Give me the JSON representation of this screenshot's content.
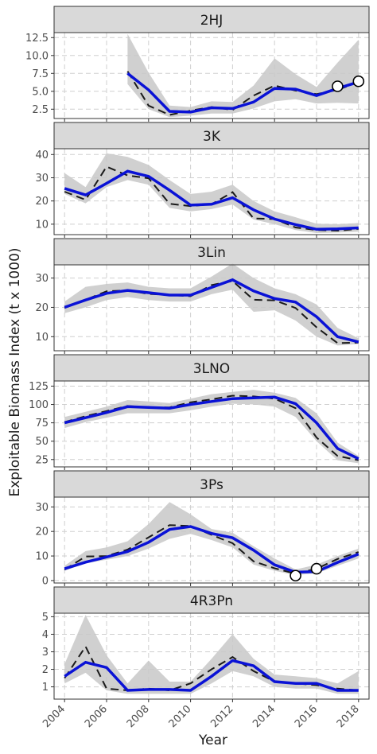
{
  "chart_data": {
    "type": "line",
    "ylabel": "Exploitable Biomass Index (t x 1000)",
    "xlabel": "Year",
    "xlim": [
      2003.5,
      2018.5
    ],
    "x_ticks": [
      2004,
      2006,
      2008,
      2010,
      2012,
      2014,
      2016,
      2018
    ],
    "x_tick_labels": [
      "2004",
      "2006",
      "2008",
      "2010",
      "2012",
      "2014",
      "2016",
      "2018"
    ],
    "grid": true,
    "colors": {
      "fit": "#0a12d6",
      "observed": "#1a1a1a",
      "band": "#c8c8c8",
      "strip": "#d9d9d9"
    },
    "panels": [
      {
        "title": "2HJ",
        "ylim": [
          1.2,
          13.2
        ],
        "y_ticks": [
          2.5,
          5.0,
          7.5,
          10.0,
          12.5
        ],
        "y_tick_labels": [
          "2.5",
          "5.0",
          "7.5",
          "10.0",
          "12.5"
        ],
        "x": [
          2007,
          2008,
          2009,
          2010,
          2011,
          2012,
          2013,
          2014,
          2015,
          2016,
          2017,
          2018
        ],
        "fit": [
          7.5,
          5.2,
          2.2,
          2.1,
          2.7,
          2.6,
          3.5,
          5.4,
          5.3,
          4.4,
          5.4,
          6.3
        ],
        "observed": [
          7.8,
          3.0,
          1.7,
          2.3,
          2.8,
          2.4,
          4.4,
          5.8,
          5.1,
          4.6,
          5.2,
          6.3
        ],
        "lower": [
          6.0,
          2.5,
          1.4,
          1.6,
          1.9,
          1.9,
          2.6,
          3.6,
          3.9,
          3.3,
          3.4,
          3.3
        ],
        "upper": [
          13.0,
          7.6,
          3.0,
          2.8,
          3.6,
          3.5,
          5.8,
          9.6,
          7.4,
          5.6,
          9.0,
          12.2
        ],
        "points_x": [
          2017,
          2018
        ],
        "points_y": [
          5.7,
          6.4
        ]
      },
      {
        "title": "3K",
        "ylim": [
          5.5,
          42.5
        ],
        "y_ticks": [
          10,
          20,
          30,
          40
        ],
        "y_tick_labels": [
          "10",
          "20",
          "30",
          "40"
        ],
        "x": [
          2004,
          2005,
          2006,
          2007,
          2008,
          2009,
          2010,
          2011,
          2012,
          2013,
          2014,
          2015,
          2016,
          2017,
          2018
        ],
        "fit": [
          25.4,
          22.6,
          27.6,
          32.8,
          30.6,
          24.6,
          18.2,
          18.6,
          21.4,
          16.2,
          12.2,
          9.8,
          7.8,
          8.0,
          8.4
        ],
        "observed": [
          24.0,
          20.5,
          34.8,
          31.0,
          29.8,
          18.8,
          17.8,
          18.6,
          23.8,
          12.5,
          12.2,
          8.6,
          7.5,
          7.2,
          8.0
        ],
        "lower": [
          23.0,
          19.0,
          26.0,
          29.0,
          27.0,
          17.0,
          15.5,
          16.5,
          18.5,
          12.0,
          10.0,
          7.5,
          6.2,
          6.4,
          6.8
        ],
        "upper": [
          32.0,
          26.0,
          40.5,
          39.0,
          35.5,
          29.0,
          23.0,
          24.0,
          27.0,
          20.0,
          15.5,
          13.0,
          10.2,
          10.0,
          10.5
        ]
      },
      {
        "title": "3Lin",
        "ylim": [
          5.2,
          34.5
        ],
        "y_ticks": [
          10,
          20,
          30
        ],
        "y_tick_labels": [
          "10",
          "20",
          "30"
        ],
        "x": [
          2004,
          2005,
          2006,
          2007,
          2008,
          2009,
          2010,
          2011,
          2012,
          2013,
          2014,
          2015,
          2016,
          2017,
          2018
        ],
        "fit": [
          20.0,
          22.5,
          24.8,
          25.8,
          25.0,
          24.2,
          24.2,
          26.8,
          29.4,
          25.6,
          23.0,
          21.8,
          16.8,
          10.0,
          8.2
        ],
        "observed": [
          19.8,
          22.6,
          25.5,
          25.8,
          24.6,
          24.2,
          23.8,
          27.6,
          29.0,
          22.6,
          22.4,
          19.8,
          13.2,
          7.8,
          8.0
        ],
        "lower": [
          18.0,
          20.0,
          22.5,
          23.5,
          22.5,
          22.0,
          22.0,
          24.5,
          26.0,
          18.5,
          19.0,
          15.5,
          10.0,
          7.0,
          7.5
        ],
        "upper": [
          22.0,
          27.0,
          28.0,
          28.5,
          27.0,
          26.5,
          26.5,
          30.5,
          35.0,
          30.0,
          26.5,
          24.5,
          21.0,
          13.0,
          9.5
        ]
      },
      {
        "title": "3LNO",
        "ylim": [
          15,
          132
        ],
        "y_ticks": [
          25,
          50,
          75,
          100,
          125
        ],
        "y_tick_labels": [
          "25",
          "50",
          "75",
          "100",
          "125"
        ],
        "x": [
          2004,
          2005,
          2006,
          2007,
          2008,
          2009,
          2010,
          2011,
          2012,
          2013,
          2014,
          2015,
          2016,
          2017,
          2018
        ],
        "fit": [
          75,
          82,
          89,
          97,
          96,
          95,
          100,
          104,
          108,
          109,
          110,
          101,
          75,
          40,
          26
        ],
        "observed": [
          76,
          84,
          91,
          98,
          96,
          96,
          103,
          107,
          112,
          111,
          108,
          95,
          55,
          30,
          24
        ],
        "lower": [
          68,
          76,
          82,
          88,
          88,
          88,
          92,
          97,
          101,
          100,
          97,
          83,
          50,
          24,
          20
        ],
        "upper": [
          83,
          90,
          97,
          106,
          104,
          102,
          108,
          114,
          117,
          120,
          116,
          109,
          88,
          48,
          30
        ]
      },
      {
        "title": "3Ps",
        "ylim": [
          -1,
          34
        ],
        "y_ticks": [
          0,
          10,
          20,
          30
        ],
        "y_tick_labels": [
          "0",
          "10",
          "20",
          "30"
        ],
        "x": [
          2004,
          2005,
          2006,
          2007,
          2008,
          2009,
          2010,
          2011,
          2012,
          2013,
          2014,
          2015,
          2016,
          2017,
          2018
        ],
        "fit": [
          4.8,
          7.5,
          9.6,
          11.8,
          15.6,
          20.8,
          22.0,
          19.2,
          17.4,
          12.4,
          6.4,
          3.4,
          3.6,
          7.4,
          10.8
        ],
        "observed": [
          4.4,
          9.8,
          10.0,
          12.6,
          17.6,
          22.6,
          22.2,
          18.6,
          15.2,
          7.8,
          5.0,
          2.8,
          4.8,
          8.8,
          11.6
        ],
        "lower": [
          4.0,
          7.0,
          8.5,
          10.0,
          13.0,
          17.0,
          19.0,
          16.5,
          13.5,
          6.5,
          4.0,
          2.2,
          3.0,
          6.0,
          9.0
        ],
        "upper": [
          6.0,
          12.0,
          13.5,
          16.0,
          23.0,
          32.0,
          27.0,
          21.0,
          19.5,
          14.0,
          9.0,
          4.5,
          6.5,
          10.0,
          13.0
        ],
        "points_x": [
          2015,
          2016
        ],
        "points_y": [
          2.0,
          4.8
        ]
      },
      {
        "title": "4R3Pn",
        "ylim": [
          0.3,
          5.2
        ],
        "y_ticks": [
          1,
          2,
          3,
          4,
          5
        ],
        "y_tick_labels": [
          "1",
          "2",
          "3",
          "4",
          "5"
        ],
        "x": [
          2004,
          2005,
          2006,
          2007,
          2008,
          2009,
          2010,
          2011,
          2012,
          2013,
          2014,
          2015,
          2016,
          2017,
          2018
        ],
        "fit": [
          1.6,
          2.4,
          2.1,
          0.8,
          0.85,
          0.85,
          0.8,
          1.6,
          2.5,
          2.2,
          1.3,
          1.2,
          1.2,
          0.8,
          0.8
        ],
        "observed": [
          1.5,
          3.3,
          0.9,
          0.8,
          0.9,
          0.8,
          1.2,
          2.0,
          2.7,
          1.9,
          1.3,
          1.2,
          1.1,
          0.9,
          0.8
        ],
        "lower": [
          1.2,
          1.8,
          0.8,
          0.6,
          0.6,
          0.6,
          0.6,
          1.2,
          1.9,
          1.6,
          1.0,
          0.9,
          0.9,
          0.6,
          0.6
        ],
        "upper": [
          2.3,
          5.1,
          2.8,
          1.2,
          2.5,
          1.3,
          1.3,
          2.6,
          4.0,
          2.6,
          1.7,
          1.6,
          1.5,
          1.2,
          1.9
        ]
      }
    ]
  }
}
